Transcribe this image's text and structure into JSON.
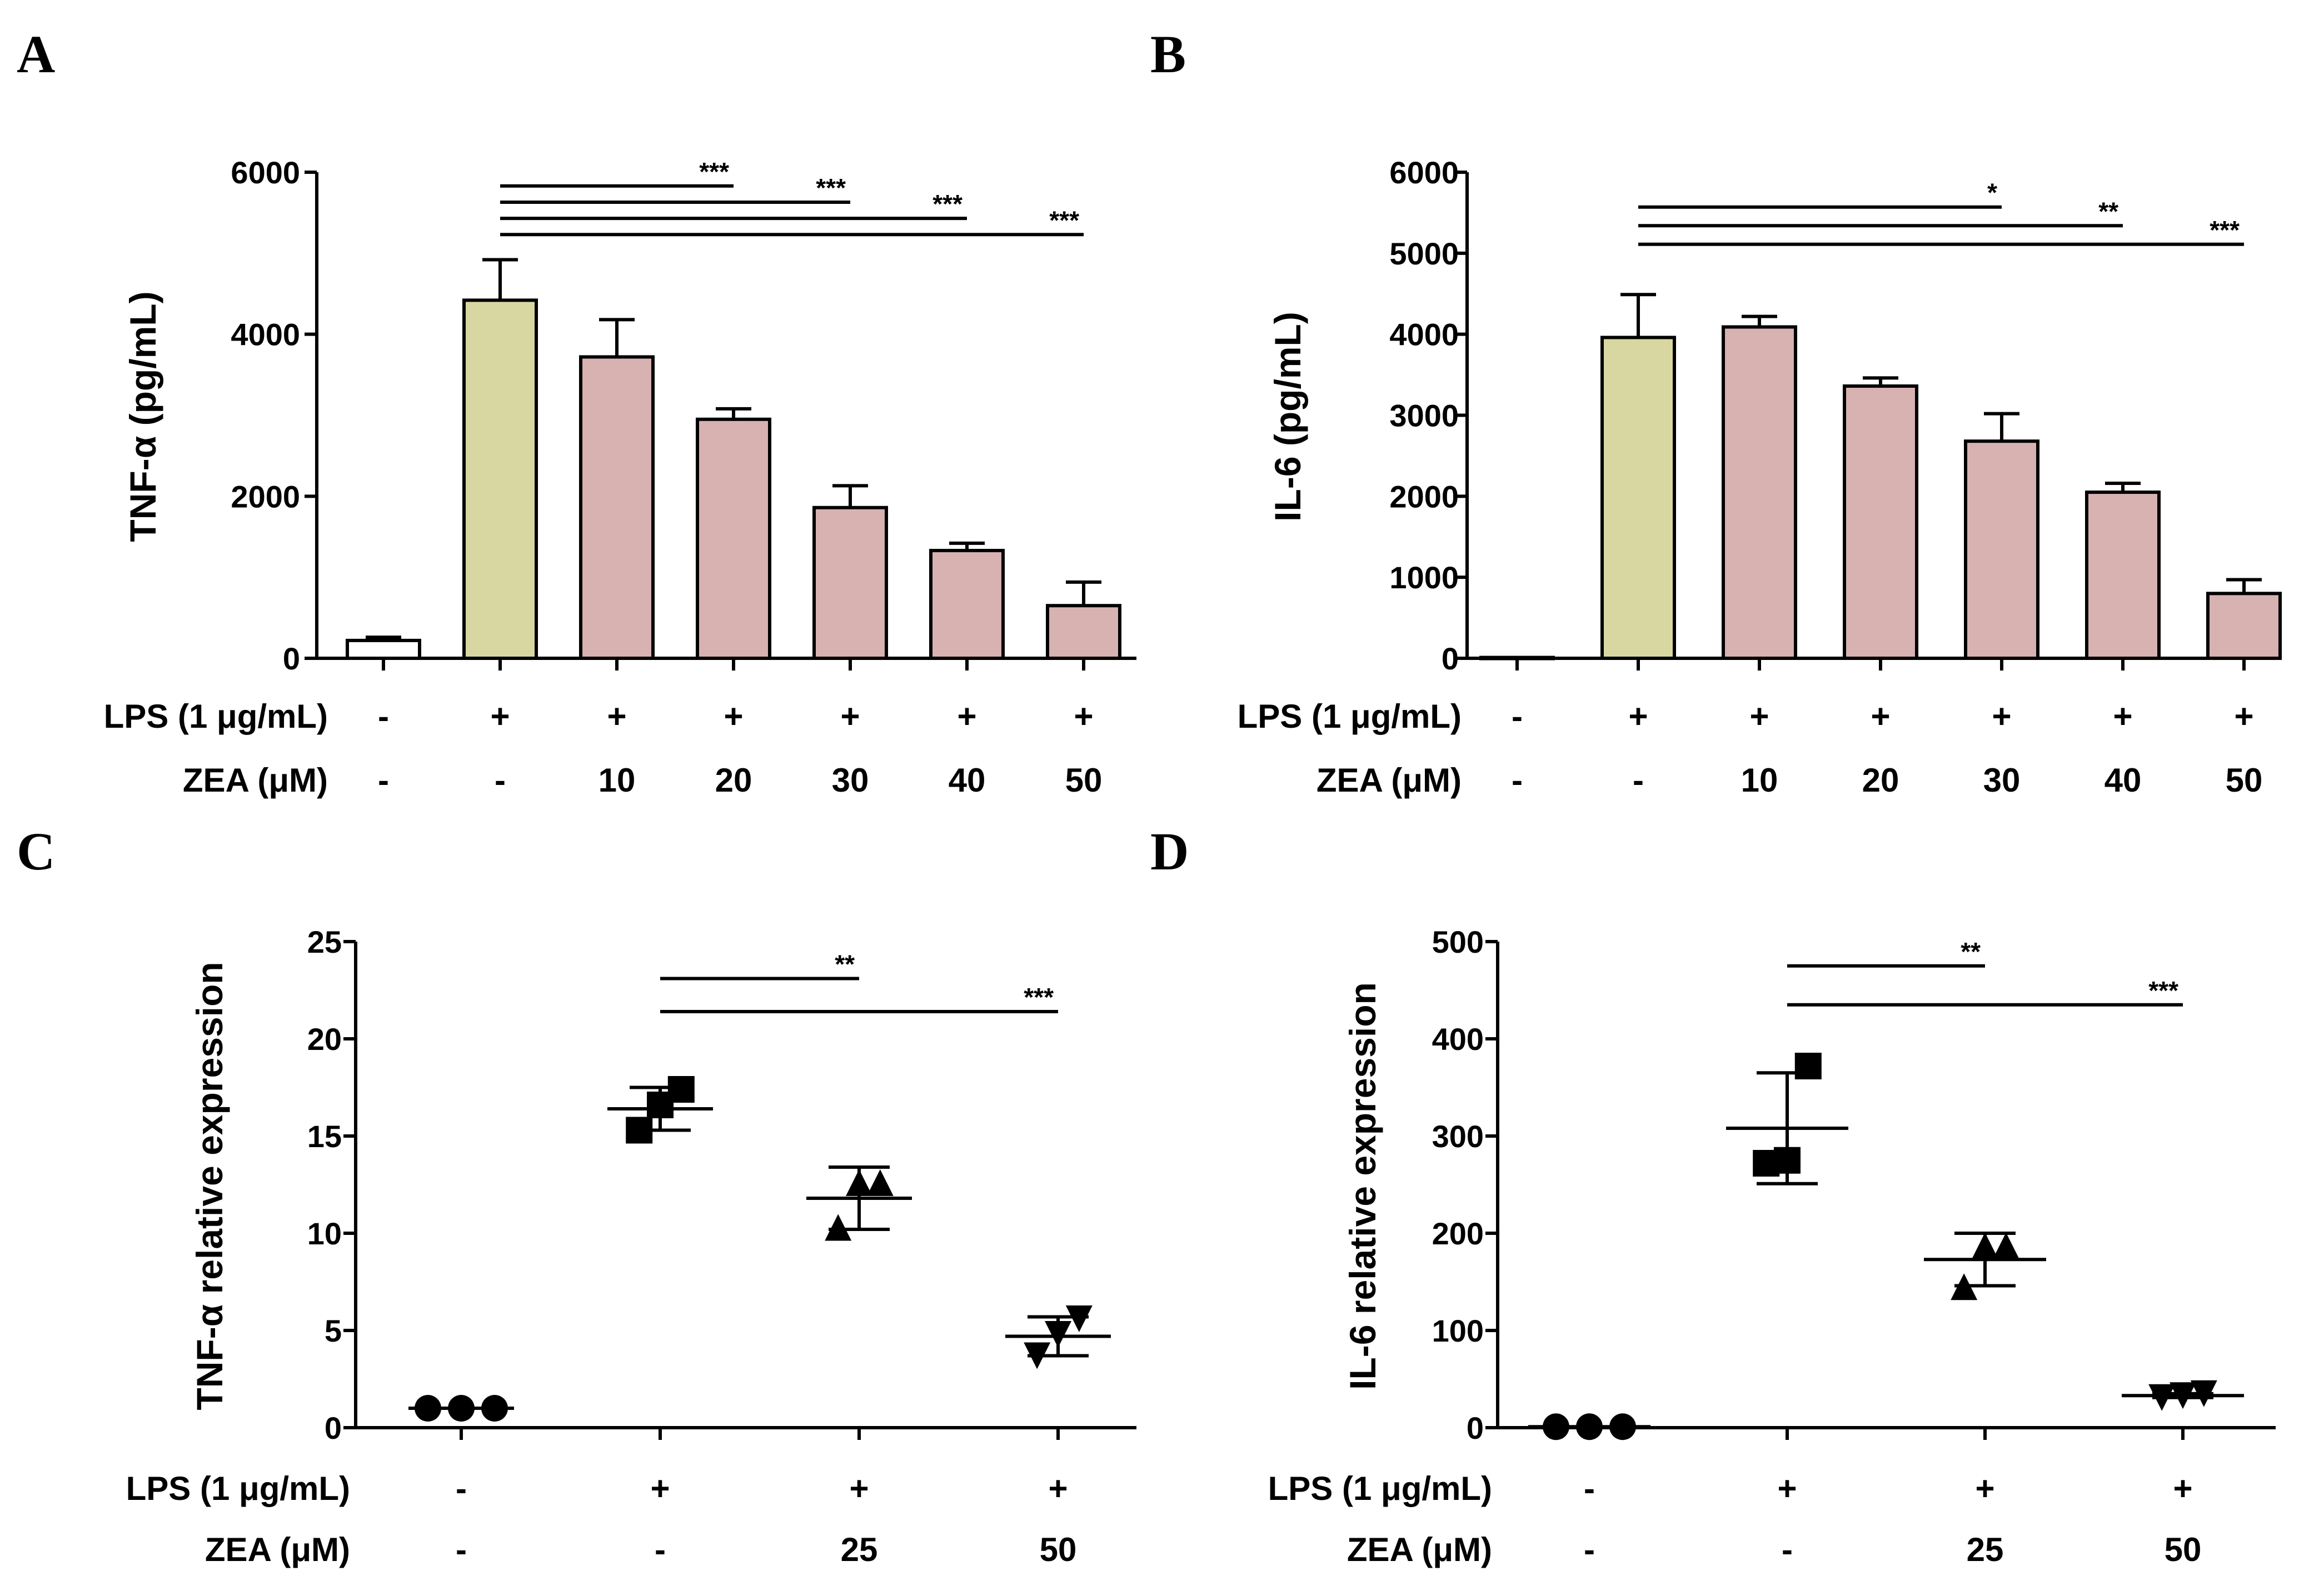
{
  "colors": {
    "control": "#ffffff",
    "lps": "#d9d7a1",
    "zea": "#d8b1b1",
    "ink": "#000000"
  },
  "chart_data": [
    {
      "panel": "A",
      "type": "bar",
      "ylabel": "TNF-α (pg/mL)",
      "ylim": [
        0,
        6000
      ],
      "yticks": [
        0,
        2000,
        4000,
        6000
      ],
      "categories": [
        "ctrl",
        "LPS",
        "LPS+ZEA10",
        "LPS+ZEA20",
        "LPS+ZEA30",
        "LPS+ZEA40",
        "LPS+ZEA50"
      ],
      "values": [
        220,
        4420,
        3720,
        2950,
        1860,
        1330,
        650
      ],
      "errors": [
        40,
        500,
        460,
        130,
        270,
        90,
        290
      ],
      "fill_keys": [
        "control",
        "lps",
        "zea",
        "zea",
        "zea",
        "zea",
        "zea"
      ],
      "row1_label": "LPS (1 μg/mL)",
      "row1": [
        "-",
        "+",
        "+",
        "+",
        "+",
        "+",
        "+"
      ],
      "row2_label": "ZEA (μM)",
      "row2": [
        "-",
        "-",
        "10",
        "20",
        "30",
        "40",
        "50"
      ],
      "significance": [
        {
          "from": 1,
          "to": 3,
          "y": 5830,
          "text": "***"
        },
        {
          "from": 1,
          "to": 4,
          "y": 5630,
          "text": "***"
        },
        {
          "from": 1,
          "to": 5,
          "y": 5430,
          "text": "***"
        },
        {
          "from": 1,
          "to": 6,
          "y": 5230,
          "text": "***"
        }
      ]
    },
    {
      "panel": "B",
      "type": "bar",
      "ylabel": "IL-6 (pg/mL)",
      "ylim": [
        0,
        6000
      ],
      "yticks": [
        0,
        1000,
        2000,
        3000,
        4000,
        5000,
        6000
      ],
      "categories": [
        "ctrl",
        "LPS",
        "LPS+ZEA10",
        "LPS+ZEA20",
        "LPS+ZEA30",
        "LPS+ZEA40",
        "LPS+ZEA50"
      ],
      "values": [
        10,
        3960,
        4090,
        3360,
        2680,
        2050,
        800
      ],
      "errors": [
        0,
        530,
        130,
        100,
        340,
        110,
        170
      ],
      "fill_keys": [
        "control",
        "lps",
        "zea",
        "zea",
        "zea",
        "zea",
        "zea"
      ],
      "row1_label": "LPS (1 μg/mL)",
      "row1": [
        "-",
        "+",
        "+",
        "+",
        "+",
        "+",
        "+"
      ],
      "row2_label": "ZEA (μM)",
      "row2": [
        "-",
        "-",
        "10",
        "20",
        "30",
        "40",
        "50"
      ],
      "significance": [
        {
          "from": 1,
          "to": 4,
          "y": 5570,
          "text": "*"
        },
        {
          "from": 1,
          "to": 5,
          "y": 5340,
          "text": "**"
        },
        {
          "from": 1,
          "to": 6,
          "y": 5110,
          "text": "***"
        }
      ]
    },
    {
      "panel": "C",
      "type": "scatter",
      "ylabel": "TNF-α relative expression",
      "ylim": [
        0,
        25
      ],
      "yticks": [
        0,
        5,
        10,
        15,
        20,
        25
      ],
      "groups": [
        {
          "marker": "circle",
          "mean": 1.0,
          "sd": 0,
          "points": [
            1.0,
            1.0,
            1.0
          ]
        },
        {
          "marker": "square",
          "mean": 16.4,
          "sd": 1.1,
          "points": [
            15.3,
            16.6,
            17.4
          ]
        },
        {
          "marker": "triangle-up",
          "mean": 11.8,
          "sd": 1.6,
          "points": [
            10.3,
            12.6,
            12.6
          ]
        },
        {
          "marker": "triangle-down",
          "mean": 4.7,
          "sd": 1.0,
          "points": [
            3.7,
            4.8,
            5.6
          ]
        }
      ],
      "row1_label": "LPS (1 μg/mL)",
      "row1": [
        "-",
        "+",
        "+",
        "+"
      ],
      "row2_label": "ZEA (μM)",
      "row2": [
        "-",
        "-",
        "25",
        "50"
      ],
      "significance": [
        {
          "from": 1,
          "to": 2,
          "y": 23.1,
          "text": "**"
        },
        {
          "from": 1,
          "to": 3,
          "y": 21.4,
          "text": "***"
        }
      ]
    },
    {
      "panel": "D",
      "type": "scatter",
      "ylabel": "IL-6 relative expression",
      "ylim": [
        0,
        500
      ],
      "yticks": [
        0,
        100,
        200,
        300,
        400,
        500
      ],
      "groups": [
        {
          "marker": "circle",
          "mean": 1,
          "sd": 0,
          "points": [
            1,
            1,
            1
          ]
        },
        {
          "marker": "square",
          "mean": 308,
          "sd": 57,
          "points": [
            272,
            275,
            372
          ]
        },
        {
          "marker": "triangle-up",
          "mean": 173,
          "sd": 27,
          "points": [
            145,
            187,
            187
          ]
        },
        {
          "marker": "triangle-down",
          "mean": 33,
          "sd": 2,
          "points": [
            31,
            33,
            35
          ]
        }
      ],
      "row1_label": "LPS (1 μg/mL)",
      "row1": [
        "-",
        "+",
        "+",
        "+"
      ],
      "row2_label": "ZEA (μM)",
      "row2": [
        "-",
        "-",
        "25",
        "50"
      ],
      "significance": [
        {
          "from": 1,
          "to": 2,
          "y": 475,
          "text": "**"
        },
        {
          "from": 1,
          "to": 3,
          "y": 435,
          "text": "***"
        }
      ]
    }
  ]
}
